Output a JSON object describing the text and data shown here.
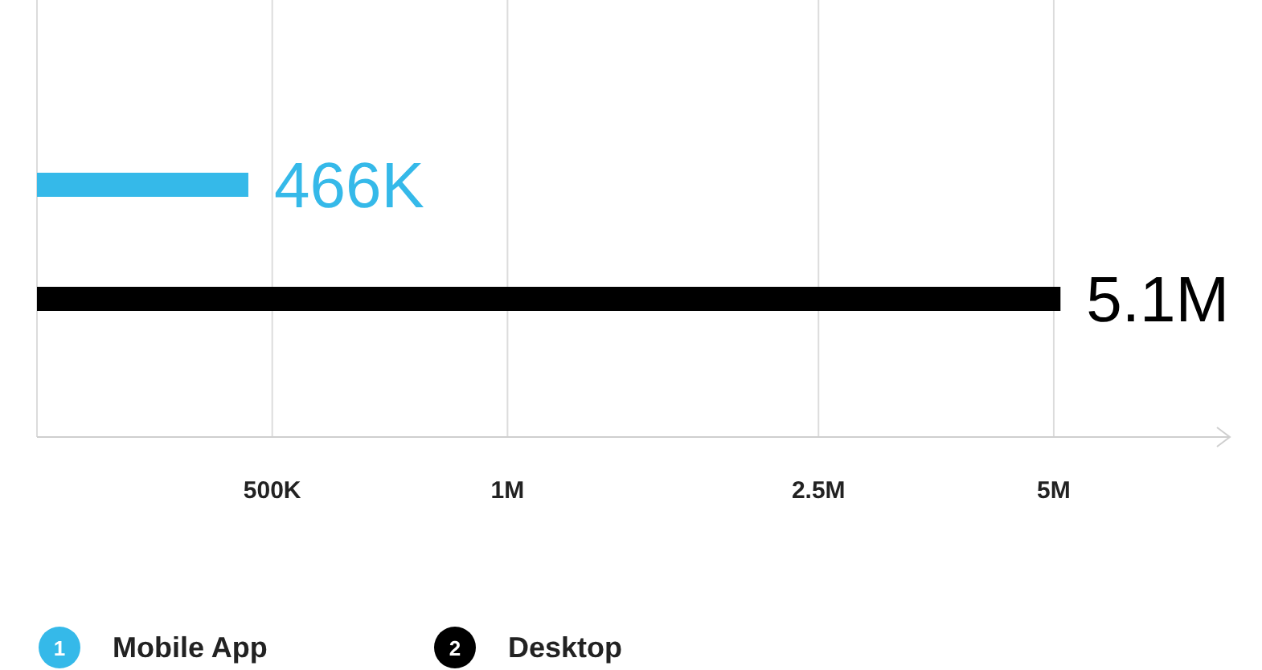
{
  "chart_data": {
    "type": "bar",
    "orientation": "horizontal",
    "categories": [
      null,
      null
    ],
    "series": [
      {
        "name": "Mobile App",
        "color": "#35b9e9",
        "values": [
          466000,
          null
        ],
        "value_labels": [
          "466K",
          null
        ]
      },
      {
        "name": "Desktop",
        "color": "#000000",
        "values": [
          null,
          5100000
        ],
        "value_labels": [
          null,
          "5.1M"
        ]
      }
    ],
    "log": "x",
    "xlim": [
      250000,
      8400000
    ],
    "xticks": [
      {
        "value": 500000,
        "label": "500K"
      },
      {
        "value": 1000000,
        "label": "1M"
      },
      {
        "value": 2500000,
        "label": "2.5M"
      },
      {
        "value": 5000000,
        "label": "5M"
      }
    ],
    "annotations": [
      "1",
      "2"
    ],
    "grid": "x",
    "legend": "bottom left",
    "tick_labels": "x"
  }
}
